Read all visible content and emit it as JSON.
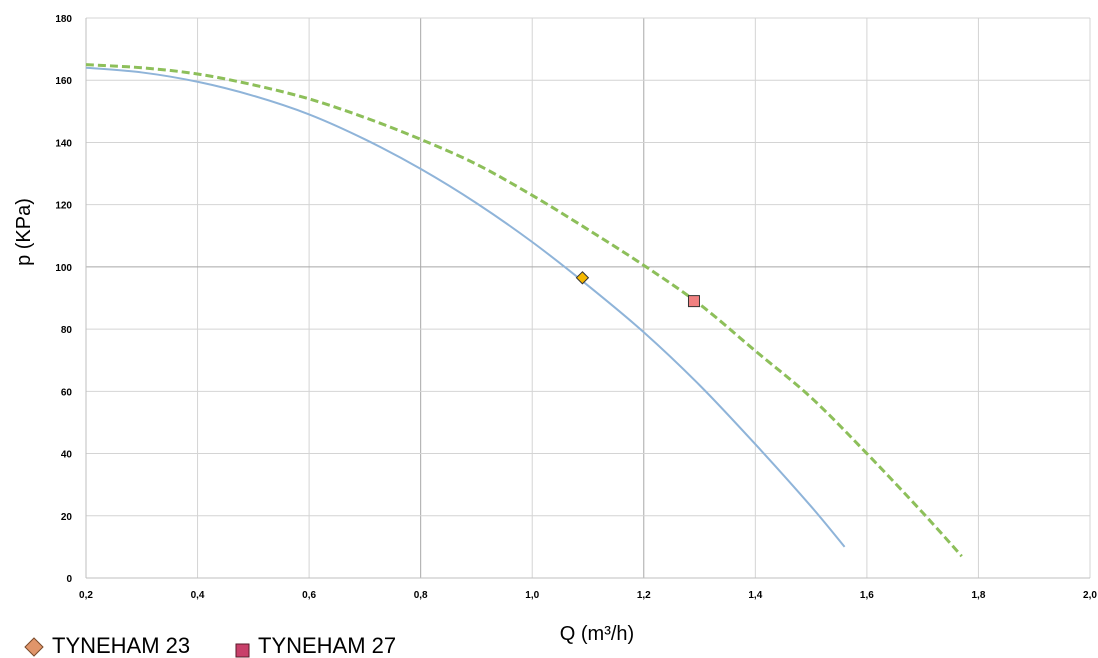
{
  "chart_data": {
    "type": "line",
    "title": "",
    "xlabel": "Q (m³/h)",
    "ylabel": "p (KPa)",
    "xlim": [
      0.2,
      2.0
    ],
    "ylim": [
      0,
      180
    ],
    "x_ticks": [
      "0,2",
      "0,4",
      "0,6",
      "0,8",
      "1,0",
      "1,2",
      "1,4",
      "1,6",
      "1,8",
      "2,0"
    ],
    "y_ticks": [
      "0",
      "20",
      "40",
      "60",
      "80",
      "100",
      "120",
      "140",
      "160",
      "180"
    ],
    "grid": true,
    "legend_position": "bottom-left",
    "series": [
      {
        "name": "TYNEHAM 23",
        "style": "solid",
        "color": "#8FB4D9",
        "x": [
          0.2,
          0.3,
          0.4,
          0.5,
          0.6,
          0.7,
          0.8,
          0.9,
          1.0,
          1.1,
          1.2,
          1.3,
          1.4,
          1.5,
          1.56
        ],
        "y": [
          164,
          162.5,
          159.5,
          155,
          149,
          141,
          131.5,
          120.5,
          108,
          94,
          79,
          62,
          43,
          23,
          10
        ],
        "operating_point": {
          "x": 1.09,
          "y": 96.5,
          "marker": "diamond",
          "color": "#F5B800"
        }
      },
      {
        "name": "TYNEHAM 27",
        "style": "dashed",
        "color": "#8DBF5A",
        "x": [
          0.2,
          0.3,
          0.4,
          0.5,
          0.6,
          0.7,
          0.8,
          0.9,
          1.0,
          1.1,
          1.2,
          1.3,
          1.4,
          1.5,
          1.6,
          1.7,
          1.77
        ],
        "y": [
          165,
          164,
          162,
          158.5,
          154,
          148,
          141,
          133,
          123,
          112,
          100.5,
          88,
          73,
          58,
          40,
          21,
          7
        ],
        "operating_point": {
          "x": 1.29,
          "y": 89,
          "marker": "square",
          "color": "#F08080"
        }
      }
    ],
    "legend": [
      {
        "label": "TYNEHAM 23",
        "marker": "diamond",
        "color": "#E0956A"
      },
      {
        "label": "TYNEHAM 27",
        "marker": "square",
        "color": "#C8406A"
      }
    ]
  }
}
